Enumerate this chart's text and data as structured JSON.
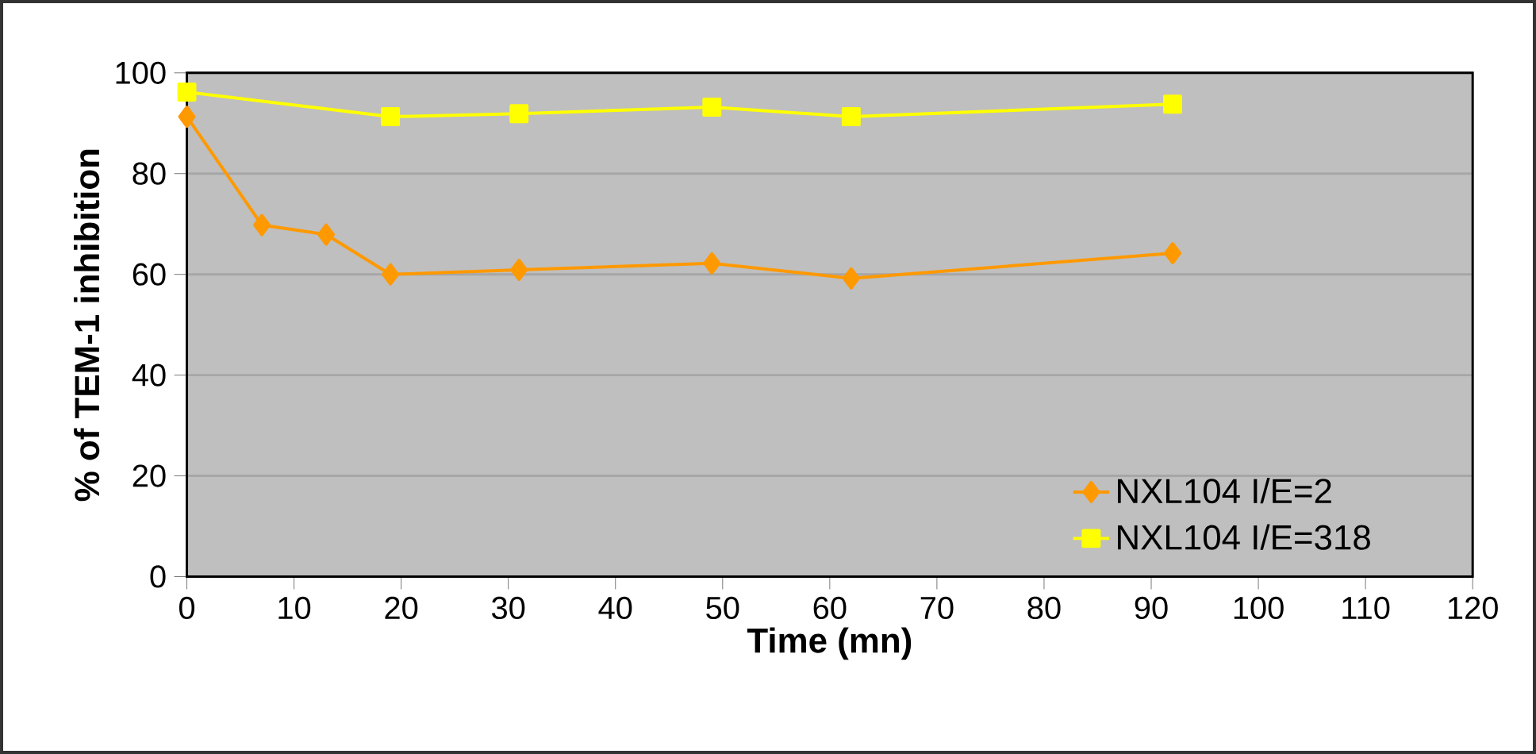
{
  "chart_data": {
    "type": "line",
    "xlabel": "Time (mn)",
    "ylabel": "% of TEM-1 inhibition",
    "series": [
      {
        "name": "NXL104  I/E=2",
        "color": "#ff9900",
        "marker": "diamond",
        "x": [
          0,
          7,
          13,
          19,
          31,
          49,
          62,
          92
        ],
        "values": [
          91.3,
          69.8,
          67.9,
          60,
          60.9,
          62.2,
          59.2,
          64.2
        ]
      },
      {
        "name": "NXL104  I/E=318",
        "color": "#ffff00",
        "marker": "square",
        "x": [
          0,
          19,
          31,
          49,
          62,
          92
        ],
        "values": [
          96.2,
          91.3,
          91.9,
          93.2,
          91.3,
          93.8
        ]
      }
    ],
    "xlim": [
      0,
      120
    ],
    "xticks": [
      0,
      10,
      20,
      30,
      40,
      50,
      60,
      70,
      80,
      90,
      100,
      110,
      120
    ],
    "ylim": [
      0,
      100
    ],
    "yticks": [
      0,
      20,
      40,
      60,
      80,
      100
    ],
    "grid": "y",
    "legend": "bottom right"
  }
}
